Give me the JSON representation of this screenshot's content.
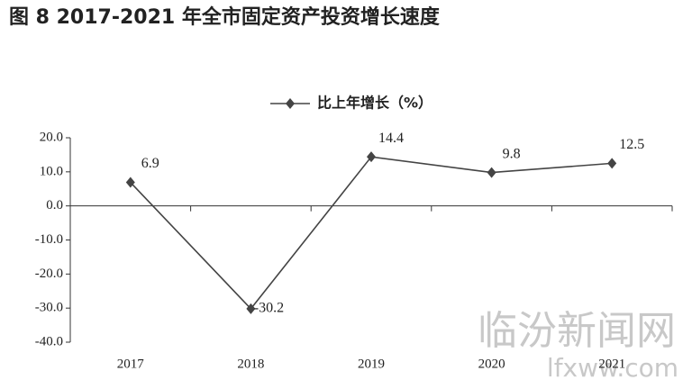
{
  "chart_data": {
    "type": "line",
    "title": "图 8   2017-2021 年全市固定资产投资增长速度",
    "categories": [
      "2017",
      "2018",
      "2019",
      "2020",
      "2021"
    ],
    "series": [
      {
        "name": "比上年增长（%）",
        "color": "#444444",
        "values": [
          6.9,
          -30.2,
          14.4,
          9.8,
          12.5
        ]
      }
    ],
    "ylim": [
      -40,
      20
    ],
    "yticks": [
      {
        "value": -40,
        "label": "-40.0"
      },
      {
        "value": -30,
        "label": "-30.0"
      },
      {
        "value": -20,
        "label": "-20.0"
      },
      {
        "value": -10,
        "label": "-10.0"
      },
      {
        "value": 0,
        "label": "0.0"
      },
      {
        "value": 10,
        "label": "10.0"
      },
      {
        "value": 20,
        "label": "20.0"
      }
    ],
    "watermark": [
      "临汾新闻网",
      "lfxww.com"
    ]
  }
}
